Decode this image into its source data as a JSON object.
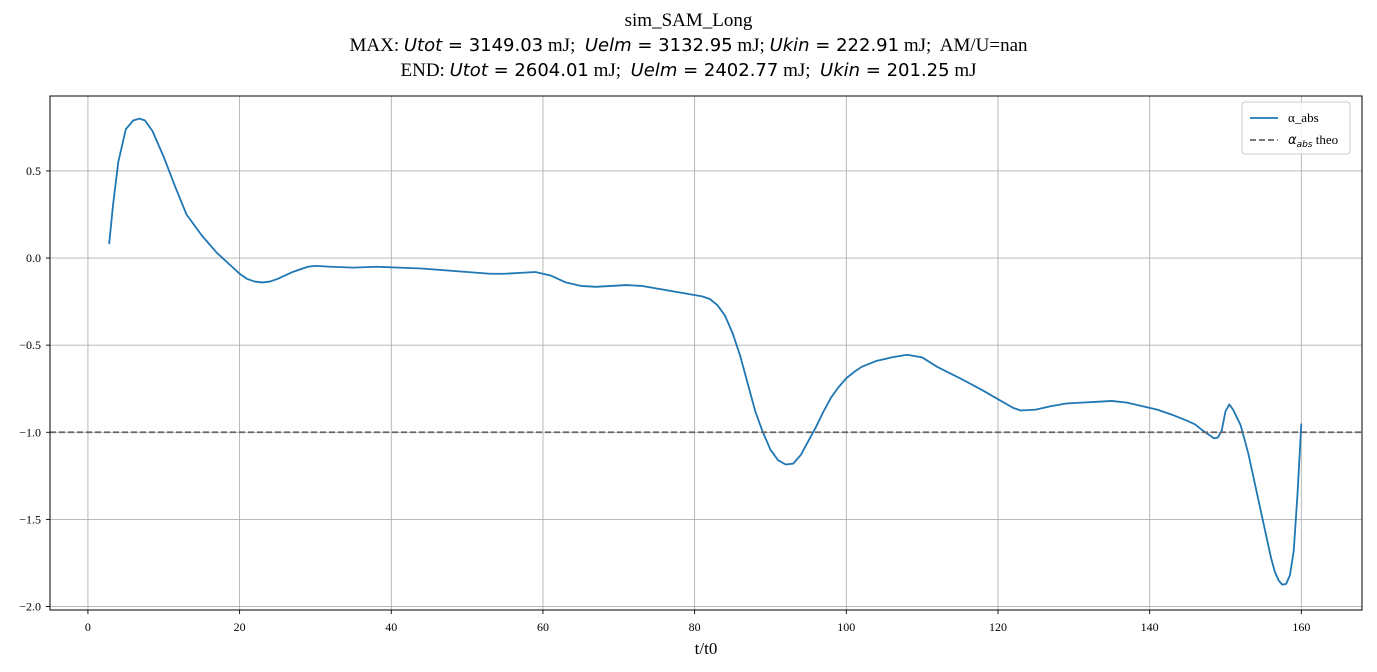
{
  "title": {
    "line1": "sim_SAM_Long",
    "line2": {
      "prefix": "MAX: ",
      "utot_sym": "Utot",
      "utot_val": " = 3149.03",
      "unit1": " mJ;  ",
      "uelm_sym": "Uelm",
      "uelm_val": " = 3132.95",
      "unit2": " mJ; ",
      "ukin_sym": "Ukin",
      "ukin_val": " = 222.91",
      "unit3": " mJ;  AM/U=nan"
    },
    "line3": {
      "prefix": "END: ",
      "utot_sym": "Utot",
      "utot_val": " = 2604.01",
      "unit1": " mJ;  ",
      "uelm_sym": "Uelm",
      "uelm_val": " = 2402.77",
      "unit2": " mJ;  ",
      "ukin_sym": "Ukin",
      "ukin_val": " = 201.25",
      "unit3": " mJ"
    }
  },
  "chart_data": {
    "type": "line",
    "xlabel": "t/t0",
    "ylabel": "",
    "xlim": [
      -5,
      168
    ],
    "ylim": [
      -2.02,
      0.93
    ],
    "x_ticks": [
      0,
      20,
      40,
      60,
      80,
      100,
      120,
      140,
      160
    ],
    "x_tick_labels": [
      "0",
      "20",
      "40",
      "60",
      "80",
      "100",
      "120",
      "140",
      "160"
    ],
    "y_ticks": [
      0.5,
      0.0,
      -0.5,
      -1.0,
      -1.5,
      -2.0
    ],
    "y_tick_labels": [
      "0.5",
      "0.0",
      "−0.5",
      "−1.0",
      "−1.5",
      "−2.0"
    ],
    "grid": true,
    "legend_position": "top-right",
    "series": [
      {
        "name": "α_abs",
        "color": "#1f77b4",
        "style": "solid",
        "x": [
          2.8,
          3.3,
          4,
          5,
          6,
          6.8,
          7.5,
          8.5,
          10,
          11.5,
          13,
          15,
          17,
          19,
          20,
          21,
          22,
          23,
          24,
          25,
          27,
          29,
          30,
          32,
          35,
          38,
          41,
          44,
          47,
          50,
          53,
          55,
          57,
          59,
          61,
          63,
          65,
          67,
          69,
          71,
          73,
          75,
          77,
          79,
          81,
          82,
          83,
          84,
          85,
          86,
          87,
          88,
          89,
          90,
          91,
          92,
          93,
          94,
          95,
          96,
          97,
          98,
          99,
          100,
          101,
          102,
          104,
          106,
          108,
          110,
          112,
          115,
          118,
          120,
          122,
          123,
          125,
          127,
          129,
          131,
          133,
          135,
          137,
          139,
          141,
          143,
          145,
          146,
          147,
          148,
          148.5,
          149,
          149.5,
          150,
          150.5,
          151,
          152,
          153,
          154,
          155,
          156,
          156.5,
          157,
          157.5,
          158,
          158.5,
          159,
          159.5,
          160
        ],
        "y": [
          0.08,
          0.3,
          0.55,
          0.74,
          0.79,
          0.8,
          0.79,
          0.73,
          0.58,
          0.41,
          0.25,
          0.13,
          0.03,
          -0.05,
          -0.09,
          -0.12,
          -0.135,
          -0.14,
          -0.135,
          -0.12,
          -0.08,
          -0.05,
          -0.045,
          -0.05,
          -0.055,
          -0.05,
          -0.055,
          -0.06,
          -0.07,
          -0.08,
          -0.09,
          -0.09,
          -0.085,
          -0.08,
          -0.1,
          -0.14,
          -0.16,
          -0.165,
          -0.16,
          -0.155,
          -0.16,
          -0.175,
          -0.19,
          -0.205,
          -0.22,
          -0.235,
          -0.27,
          -0.33,
          -0.43,
          -0.56,
          -0.72,
          -0.88,
          -1.0,
          -1.1,
          -1.16,
          -1.185,
          -1.18,
          -1.13,
          -1.05,
          -0.97,
          -0.88,
          -0.8,
          -0.74,
          -0.69,
          -0.655,
          -0.625,
          -0.59,
          -0.57,
          -0.555,
          -0.57,
          -0.625,
          -0.69,
          -0.76,
          -0.81,
          -0.86,
          -0.875,
          -0.87,
          -0.85,
          -0.835,
          -0.83,
          -0.825,
          -0.82,
          -0.83,
          -0.85,
          -0.87,
          -0.9,
          -0.935,
          -0.955,
          -0.99,
          -1.02,
          -1.035,
          -1.03,
          -0.99,
          -0.88,
          -0.84,
          -0.87,
          -0.96,
          -1.12,
          -1.32,
          -1.52,
          -1.72,
          -1.8,
          -1.85,
          -1.875,
          -1.87,
          -1.82,
          -1.68,
          -1.35,
          -0.95
        ]
      },
      {
        "name": "α_abs theo",
        "color": "#666666",
        "style": "dashed",
        "x": [
          -5,
          168
        ],
        "y": [
          -1.0,
          -1.0
        ]
      }
    ],
    "legend": [
      {
        "label": "α_abs",
        "style": "solid",
        "color": "#1f77b4"
      },
      {
        "label_math": "α",
        "label_sub": "abs",
        "label_rest": " theo",
        "style": "dashed",
        "color": "#666666"
      }
    ]
  }
}
